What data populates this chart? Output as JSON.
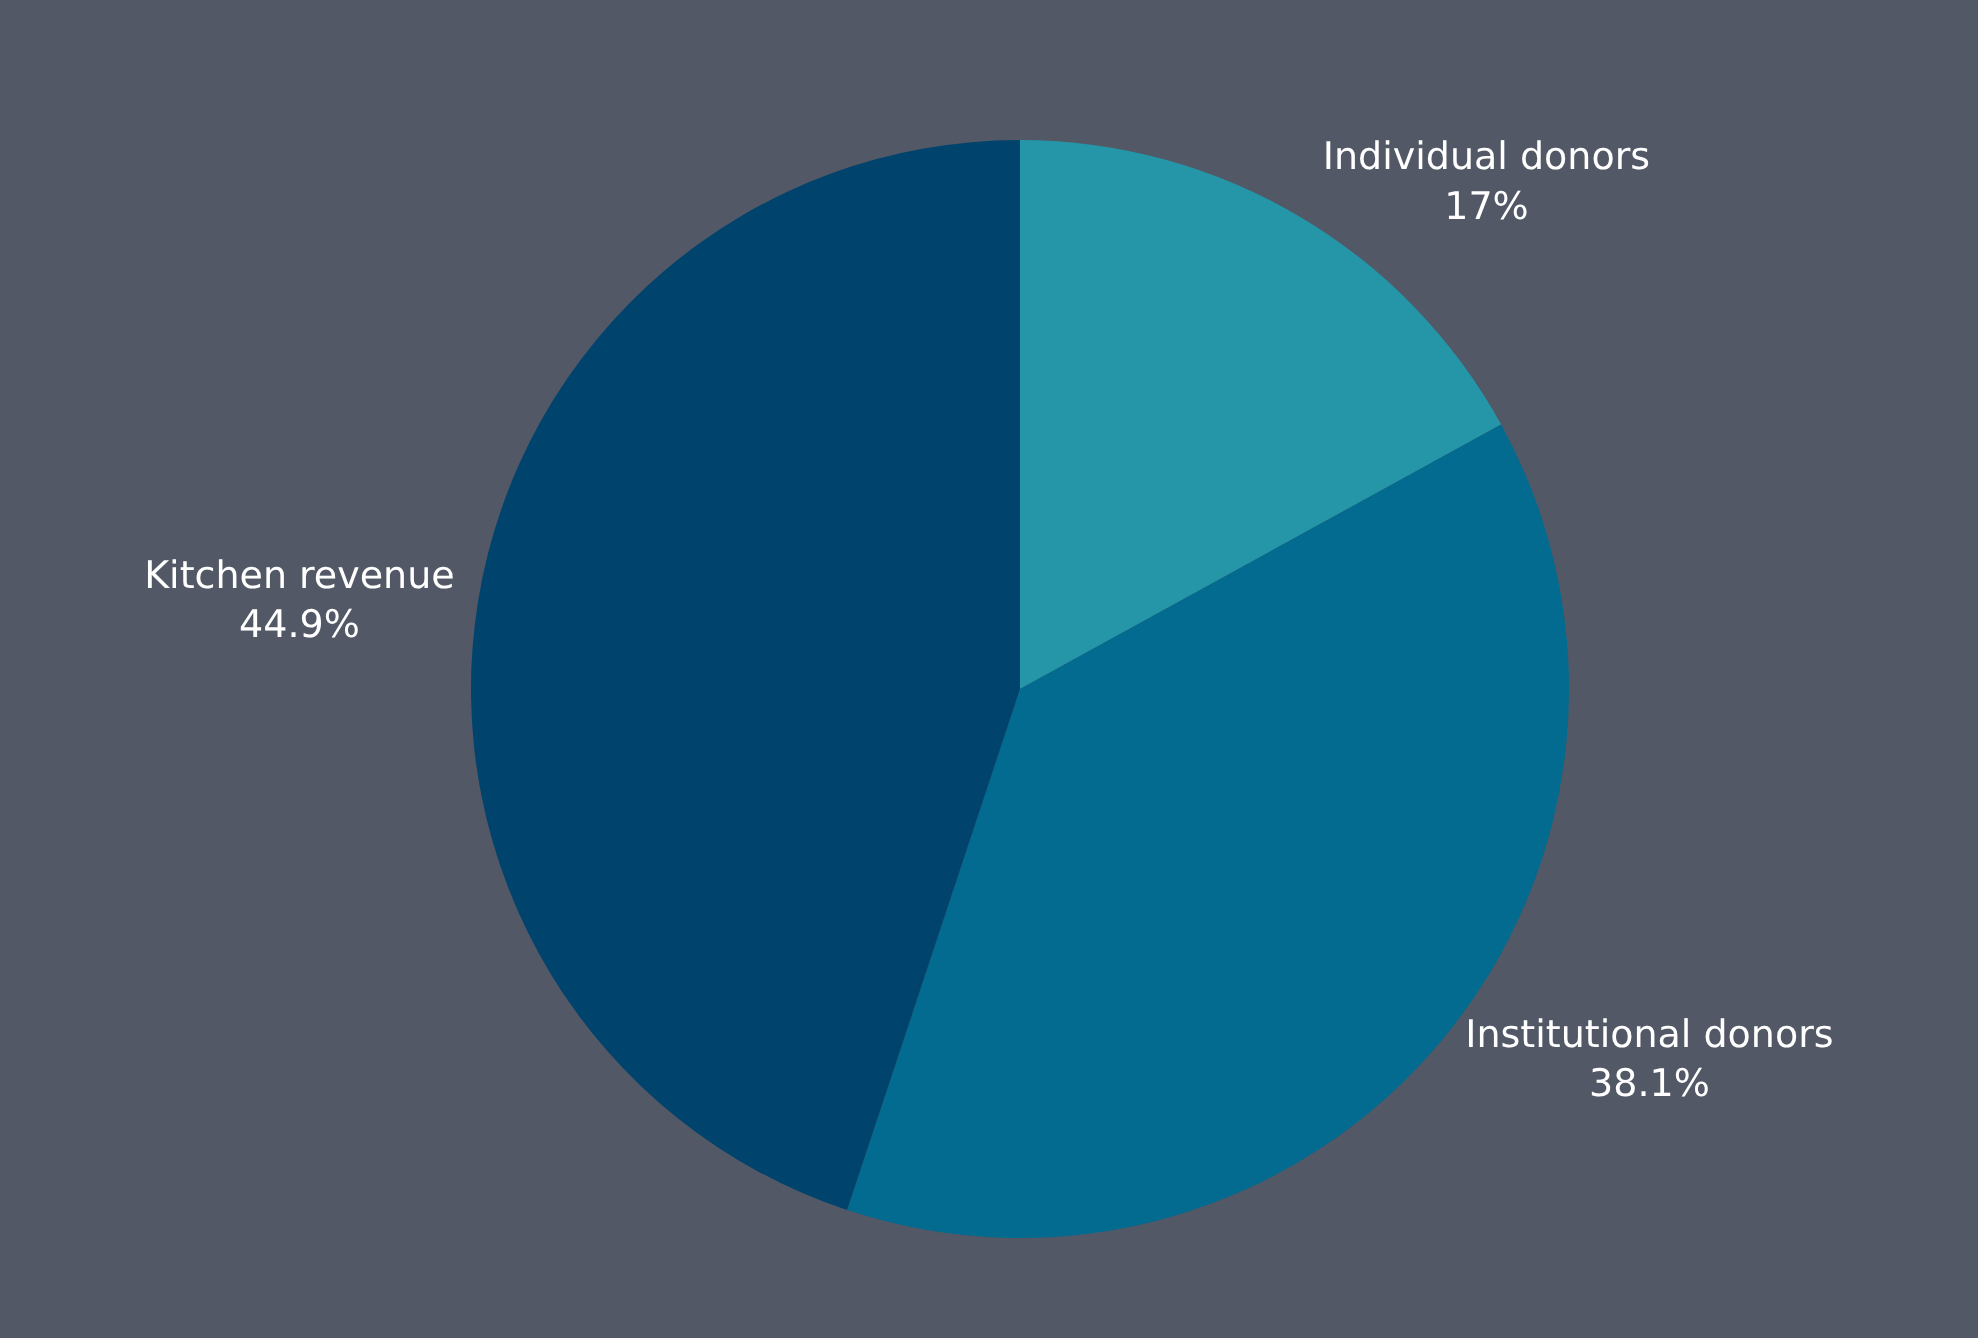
{
  "chart_data": {
    "type": "pie",
    "categories": [
      "Individual donors",
      "Institutional donors",
      "Kitchen revenue"
    ],
    "values": [
      17,
      38.1,
      44.9
    ],
    "value_labels": [
      "17%",
      "38.1%",
      "44.9%"
    ],
    "colors": [
      "#2596a8",
      "#026b8f",
      "#00436d"
    ],
    "legend": false
  }
}
